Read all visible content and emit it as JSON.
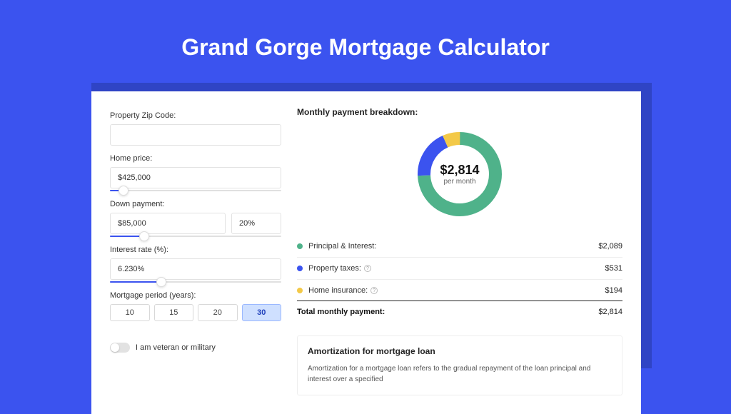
{
  "title": "Grand Gorge Mortgage Calculator",
  "colors": {
    "page_bg": "#3b53ef",
    "shadow": "#2f44c5",
    "card_bg": "#ffffff",
    "principal": "#4fb28a",
    "taxes": "#3b53ef",
    "insurance": "#f3c948"
  },
  "form": {
    "zip_label": "Property Zip Code:",
    "zip_value": "",
    "home_price_label": "Home price:",
    "home_price_value": "$425,000",
    "home_price_slider_pct": 8,
    "down_label": "Down payment:",
    "down_value": "$85,000",
    "down_pct": "20%",
    "down_slider_pct": 20,
    "rate_label": "Interest rate (%):",
    "rate_value": "6.230%",
    "rate_slider_pct": 30,
    "period_label": "Mortgage period (years):",
    "periods": [
      "10",
      "15",
      "20",
      "30"
    ],
    "period_active_index": 3,
    "veteran_label": "I am veteran or military"
  },
  "breakdown": {
    "title": "Monthly payment breakdown:",
    "center_amount": "$2,814",
    "center_sub": "per month",
    "items": [
      {
        "label": "Principal & Interest:",
        "value": "$2,089",
        "color": "#4fb28a",
        "pct": 74.3,
        "info": false
      },
      {
        "label": "Property taxes:",
        "value": "$531",
        "color": "#3b53ef",
        "pct": 18.9,
        "info": true
      },
      {
        "label": "Home insurance:",
        "value": "$194",
        "color": "#f3c948",
        "pct": 6.9,
        "info": true
      }
    ],
    "total_label": "Total monthly payment:",
    "total_value": "$2,814"
  },
  "amort": {
    "title": "Amortization for mortgage loan",
    "text": "Amortization for a mortgage loan refers to the gradual repayment of the loan principal and interest over a specified"
  },
  "donut_style": {
    "radius": 50,
    "stroke_width": 18,
    "circumference": 314.159
  }
}
